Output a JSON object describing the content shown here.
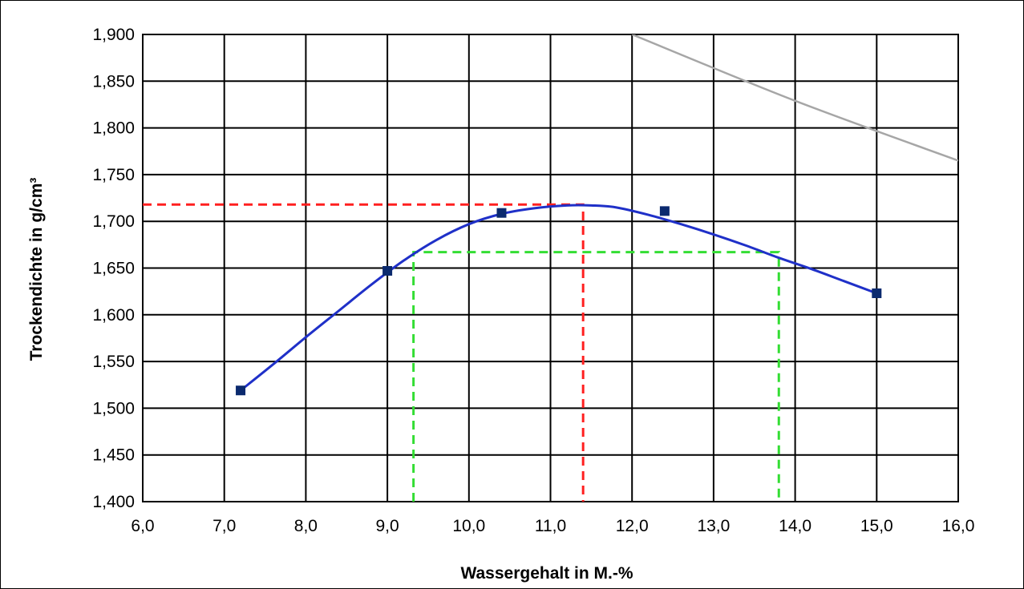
{
  "chart_data": {
    "type": "line",
    "xlabel": "Wassergehalt in M.-%",
    "ylabel": "Trockendichte  in g/cm³",
    "xlim": [
      6.0,
      16.0
    ],
    "ylim": [
      1.4,
      1.9
    ],
    "x_ticks": [
      "6,0",
      "7,0",
      "8,0",
      "9,0",
      "10,0",
      "11,0",
      "12,0",
      "13,0",
      "14,0",
      "15,0",
      "16,0"
    ],
    "y_ticks": [
      "1,400",
      "1,450",
      "1,500",
      "1,550",
      "1,600",
      "1,650",
      "1,700",
      "1,750",
      "1,800",
      "1,850",
      "1,900"
    ],
    "grid": true,
    "series": [
      {
        "type": "scatter",
        "color": "#0b2a6e",
        "x": [
          7.2,
          9.0,
          10.4,
          12.4,
          15.0
        ],
        "y": [
          1.519,
          1.647,
          1.709,
          1.711,
          1.623
        ]
      },
      {
        "type": "line",
        "color": "#1f30c8",
        "x": [
          7.2,
          7.6,
          8.0,
          8.4,
          8.8,
          9.2,
          9.6,
          10.0,
          10.4,
          10.8,
          11.2,
          11.5,
          11.8,
          12.2,
          12.6,
          13.0,
          13.4,
          13.8,
          14.2,
          14.6,
          15.0
        ],
        "y": [
          1.519,
          1.547,
          1.576,
          1.604,
          1.632,
          1.658,
          1.68,
          1.697,
          1.708,
          1.714,
          1.717,
          1.717,
          1.715,
          1.707,
          1.697,
          1.686,
          1.674,
          1.661,
          1.649,
          1.636,
          1.623
        ]
      },
      {
        "type": "line",
        "color": "#a6a6a6",
        "x": [
          12.0,
          14.0,
          16.0
        ],
        "y": [
          1.9,
          1.829,
          1.765
        ]
      }
    ],
    "annotations": [
      {
        "type": "dashed",
        "color": "#ff2020",
        "x": [
          6.0,
          11.4,
          11.4
        ],
        "y": [
          1.718,
          1.718,
          1.4
        ]
      },
      {
        "type": "dashed",
        "color": "#33dd33",
        "x": [
          9.32,
          9.32,
          13.8,
          13.8
        ],
        "y": [
          1.4,
          1.667,
          1.667,
          1.4
        ]
      }
    ]
  }
}
